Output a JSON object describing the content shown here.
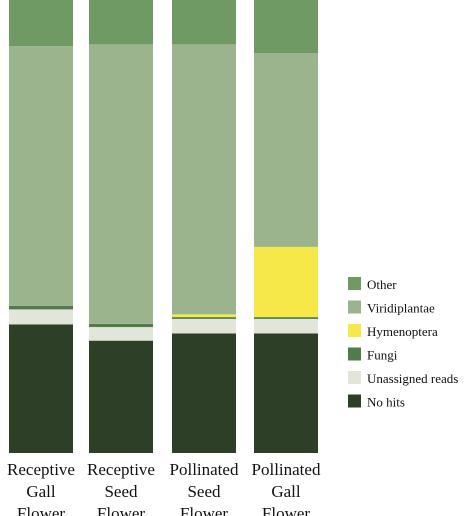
{
  "chart_data": {
    "type": "bar",
    "stacked": true,
    "normalized": true,
    "categories": [
      [
        "Receptive",
        "Gall",
        "Flower"
      ],
      [
        "Receptive",
        "Seed",
        "Flower"
      ],
      [
        "Pollinated",
        "Seed",
        "Flower"
      ],
      [
        "Pollinated",
        "Gall",
        "Flower"
      ]
    ],
    "series": [
      {
        "name": "No hits",
        "color": "#2e3f27",
        "values": [
          0.284,
          0.248,
          0.264,
          0.264
        ]
      },
      {
        "name": "Unassigned reads",
        "color": "#e2e6da",
        "values": [
          0.033,
          0.03,
          0.032,
          0.032
        ]
      },
      {
        "name": "Fungi",
        "color": "#4f7c4a",
        "values": [
          0.008,
          0.007,
          0.004,
          0.004
        ]
      },
      {
        "name": "Hymenoptera",
        "color": "#f7e84a",
        "values": [
          0.0,
          0.0,
          0.006,
          0.155
        ]
      },
      {
        "name": "Viridiplantae",
        "color": "#9bb48d",
        "values": [
          0.573,
          0.617,
          0.596,
          0.428
        ]
      },
      {
        "name": "Other",
        "color": "#6f9a63",
        "values": [
          0.102,
          0.098,
          0.098,
          0.117
        ]
      }
    ],
    "legend": {
      "position": "right",
      "order": [
        "Other",
        "Viridiplantae",
        "Hymenoptera",
        "Fungi",
        "Unassigned reads",
        "No hits"
      ]
    },
    "ylim": [
      0,
      1
    ],
    "xlabel": "",
    "ylabel": "",
    "title": "",
    "grid": false
  }
}
